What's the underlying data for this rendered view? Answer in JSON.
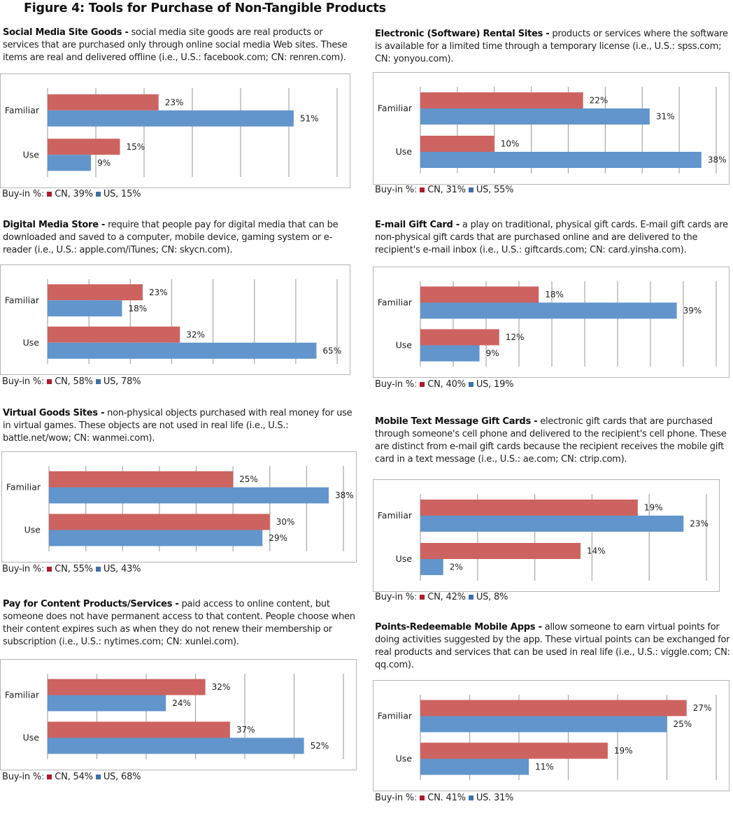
{
  "figure_title": "Figure 4: Tools for Purchase of Non-Tangible Products",
  "legend_prefix": "Buy-in %",
  "colors": {
    "cn_bar": "#cd6360",
    "us_bar": "#6195cc",
    "cn_legend": "#b01a2e",
    "us_legend": "#3d6fa8",
    "grid": "#a8a8a8"
  },
  "panels": [
    {
      "heading": "Social Media Site Goods -",
      "description": " social media site goods are real products or services that are purchased only through online social media Web sites. These items are real and delivered offline (i.e., U.S.: facebook.com; CN: renren.com).",
      "legend_cn": "CN, 39%",
      "legend_us": "US, 15%"
    },
    {
      "heading": "Electronic (Software) Rental Sites -",
      "description": " products or services where the software is available for a limited time through a temporary license (i.e., U.S.: spss.com; CN: yonyou.com).",
      "legend_cn": "CN, 31%",
      "legend_us": "US, 55%"
    },
    {
      "heading": "Digital Media Store -",
      "description": " require that people pay for digital media that can be downloaded and saved to a computer, mobile device, gaming system or e-reader (i.e., U.S.: apple.com/iTunes; CN: skycn.com).",
      "legend_cn": "CN, 58%",
      "legend_us": "US, 78%"
    },
    {
      "heading": "E-mail Gift Card -",
      "description": " a play on traditional, physical gift cards. E-mail gift cards are non-physical gift cards that are purchased online and are delivered to the recipient's e-mail inbox (i.e., U.S.: giftcards.com; CN: card.yinsha.com).",
      "legend_cn": "CN, 40%",
      "legend_us": "US, 19%"
    },
    {
      "heading": "Virtual Goods Sites -",
      "description": " non-physical objects purchased with real money for use in virtual games. These objects are not used in real life (i.e., U.S.: battle.net/wow; CN: wanmei.com).",
      "legend_cn": "CN, 55%",
      "legend_us": "US, 43%"
    },
    {
      "heading": "Mobile Text Message Gift Cards -",
      "description": " electronic gift cards that are purchased through someone's cell phone and delivered to the recipient's cell phone. These are distinct from e-mail gift cards because the recipient receives the mobile gift card in a text message (i.e., U.S.: ae.com; CN: ctrip.com).",
      "legend_cn": "CN, 42%",
      "legend_us": "US, 8%"
    },
    {
      "heading": "Pay for Content Products/Services -",
      "description": " paid access to online content, but someone does not have permanent access to that content. People choose when their content expires such as when they do not renew their membership or subscription (i.e., U.S.: nytimes.com; CN: xunlei.com).",
      "legend_cn": "CN, 54%",
      "legend_us": "US, 68%"
    },
    {
      "heading": "Points-Redeemable Mobile Apps -",
      "description": " allow someone to earn virtual points for doing activities suggested by the app. These virtual points can be exchanged for real products and services that can be used in real life (i.e., U.S.: viggle.com; CN: qq.com).",
      "legend_cn": "CN. 41%",
      "legend_us": "US. 31%"
    }
  ],
  "chart_data": [
    {
      "type": "bar",
      "orientation": "horizontal",
      "title": "Social Media Site Goods",
      "categories": [
        "Familiar",
        "Use"
      ],
      "series": [
        {
          "name": "CN",
          "values": [
            23,
            15
          ]
        },
        {
          "name": "US",
          "values": [
            51,
            9
          ]
        }
      ],
      "value_labels": [
        [
          "23%",
          "15%"
        ],
        [
          "51%",
          "9%"
        ]
      ],
      "xlim": [
        0,
        60
      ],
      "grid_step": 10,
      "grid": true,
      "legend": "bottom-left"
    },
    {
      "type": "bar",
      "orientation": "horizontal",
      "title": "Electronic (Software) Rental Sites",
      "categories": [
        "Familiar",
        "Use"
      ],
      "series": [
        {
          "name": "CN",
          "values": [
            22,
            10
          ]
        },
        {
          "name": "US",
          "values": [
            31,
            38
          ]
        }
      ],
      "value_labels": [
        [
          "22%",
          "10%"
        ],
        [
          "31%",
          "38%"
        ]
      ],
      "xlim": [
        0,
        40
      ],
      "grid_step": 5,
      "grid": true,
      "legend": "bottom-left"
    },
    {
      "type": "bar",
      "orientation": "horizontal",
      "title": "Digital Media Store",
      "categories": [
        "Familiar",
        "Use"
      ],
      "series": [
        {
          "name": "CN",
          "values": [
            23,
            32
          ]
        },
        {
          "name": "US",
          "values": [
            18,
            65
          ]
        }
      ],
      "value_labels": [
        [
          "23%",
          "32%"
        ],
        [
          "18%",
          "65%"
        ]
      ],
      "xlim": [
        0,
        70
      ],
      "grid_step": 10,
      "grid": true,
      "legend": "bottom-left"
    },
    {
      "type": "bar",
      "orientation": "horizontal",
      "title": "E-mail Gift Card",
      "categories": [
        "Familiar",
        "Use"
      ],
      "series": [
        {
          "name": "CN",
          "values": [
            18,
            12
          ]
        },
        {
          "name": "US",
          "values": [
            39,
            9
          ]
        }
      ],
      "value_labels": [
        [
          "18%",
          "12%"
        ],
        [
          "39%",
          "9%"
        ]
      ],
      "xlim": [
        0,
        45
      ],
      "grid_step": 5,
      "grid": true,
      "legend": "bottom-left"
    },
    {
      "type": "bar",
      "orientation": "horizontal",
      "title": "Virtual Goods Sites",
      "categories": [
        "Familiar",
        "Use"
      ],
      "series": [
        {
          "name": "CN",
          "values": [
            25,
            30
          ]
        },
        {
          "name": "US",
          "values": [
            38,
            29
          ]
        }
      ],
      "value_labels": [
        [
          "25%",
          "30%"
        ],
        [
          "38%",
          "29%"
        ]
      ],
      "xlim": [
        0,
        40
      ],
      "grid_step": 5,
      "grid": true,
      "legend": "bottom-left"
    },
    {
      "type": "bar",
      "orientation": "horizontal",
      "title": "Mobile Text Message Gift Cards",
      "categories": [
        "Familiar",
        "Use"
      ],
      "series": [
        {
          "name": "CN",
          "values": [
            19,
            14
          ]
        },
        {
          "name": "US",
          "values": [
            23,
            2
          ]
        }
      ],
      "value_labels": [
        [
          "19%",
          "14%"
        ],
        [
          "23%",
          "2%"
        ]
      ],
      "xlim": [
        0,
        25
      ],
      "grid_step": 5,
      "grid": true,
      "legend": "bottom-left"
    },
    {
      "type": "bar",
      "orientation": "horizontal",
      "title": "Pay for Content Products/Services",
      "categories": [
        "Familiar",
        "Use"
      ],
      "series": [
        {
          "name": "CN",
          "values": [
            32,
            37
          ]
        },
        {
          "name": "US",
          "values": [
            24,
            52
          ]
        }
      ],
      "value_labels": [
        [
          "32%",
          "37%"
        ],
        [
          "24%",
          "52%"
        ]
      ],
      "xlim": [
        0,
        60
      ],
      "grid_step": 10,
      "grid": true,
      "legend": "bottom-left"
    },
    {
      "type": "bar",
      "orientation": "horizontal",
      "title": "Points-Redeemable Mobile Apps",
      "categories": [
        "Familiar",
        "Use"
      ],
      "series": [
        {
          "name": "CN",
          "values": [
            27,
            19
          ]
        },
        {
          "name": "US",
          "values": [
            25,
            11
          ]
        }
      ],
      "value_labels": [
        [
          "27%",
          "19%"
        ],
        [
          "25%",
          "11%"
        ]
      ],
      "xlim": [
        0,
        30
      ],
      "grid_step": 5,
      "grid": true,
      "legend": "bottom-left"
    }
  ]
}
